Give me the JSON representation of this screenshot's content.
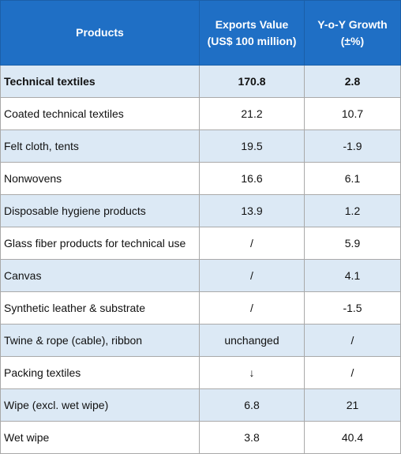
{
  "chart_data": {
    "type": "table",
    "header": {
      "products": "Products",
      "exports_line1": "Exports Value",
      "exports_line2": "(US$ 100 million)",
      "growth_line1": "Y-o-Y Growth",
      "growth_line2": "(±%)"
    },
    "rows": [
      {
        "product": "Technical textiles",
        "exports": "170.8",
        "growth": "2.8"
      },
      {
        "product": "Coated technical textiles",
        "exports": "21.2",
        "growth": "10.7"
      },
      {
        "product": "Felt cloth, tents",
        "exports": "19.5",
        "growth": "-1.9"
      },
      {
        "product": "Nonwovens",
        "exports": "16.6",
        "growth": "6.1"
      },
      {
        "product": "Disposable hygiene products",
        "exports": "13.9",
        "growth": "1.2"
      },
      {
        "product": "Glass fiber products for technical use",
        "exports": "/",
        "growth": "5.9"
      },
      {
        "product": "Canvas",
        "exports": "/",
        "growth": "4.1"
      },
      {
        "product": "Synthetic leather & substrate",
        "exports": "/",
        "growth": "-1.5"
      },
      {
        "product": "Twine & rope (cable), ribbon",
        "exports": "unchanged",
        "growth": "/"
      },
      {
        "product": "Packing textiles",
        "exports": "↓",
        "growth": "/"
      },
      {
        "product": "Wipe (excl. wet wipe)",
        "exports": "6.8",
        "growth": "21"
      },
      {
        "product": "Wet wipe",
        "exports": "3.8",
        "growth": "40.4"
      }
    ]
  }
}
